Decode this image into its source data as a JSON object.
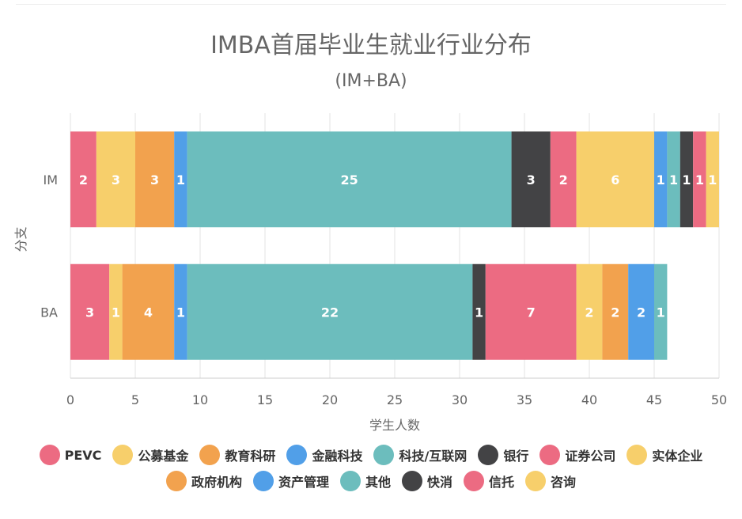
{
  "chart_data": {
    "type": "bar",
    "orientation": "horizontal",
    "stacked": true,
    "title": "IMBA首届毕业生就业行业分布",
    "subtitle": "(IM+BA)",
    "xlabel": "学生人数",
    "ylabel": "分支",
    "categories": [
      "IM",
      "BA"
    ],
    "xlim": [
      0,
      50
    ],
    "xticks": [
      "0",
      "5",
      "10",
      "15",
      "20",
      "25",
      "30",
      "35",
      "40",
      "45",
      "50"
    ],
    "grid": true,
    "legend_position": "bottom",
    "series": [
      {
        "name": "PEVC",
        "color": "#EC6B82",
        "values": [
          2,
          3
        ]
      },
      {
        "name": "公募基金",
        "color": "#F7CF6B",
        "values": [
          3,
          1
        ]
      },
      {
        "name": "教育科研",
        "color": "#F2A24E",
        "values": [
          3,
          4
        ]
      },
      {
        "name": "金融科技",
        "color": "#519FE8",
        "values": [
          1,
          1
        ]
      },
      {
        "name": "科技/互联网",
        "color": "#6CBDBD",
        "values": [
          25,
          22
        ]
      },
      {
        "name": "银行",
        "color": "#434345",
        "values": [
          3,
          1
        ]
      },
      {
        "name": "证券公司",
        "color": "#EC6B82",
        "values": [
          2,
          7
        ]
      },
      {
        "name": "实体企业",
        "color": "#F7CF6B",
        "values": [
          6,
          2
        ]
      },
      {
        "name": "政府机构",
        "color": "#F2A24E",
        "values": [
          0,
          2
        ]
      },
      {
        "name": "资产管理",
        "color": "#519FE8",
        "values": [
          1,
          2
        ]
      },
      {
        "name": "其他",
        "color": "#6CBDBD",
        "values": [
          1,
          1
        ]
      },
      {
        "name": "快消",
        "color": "#434345",
        "values": [
          1,
          0
        ]
      },
      {
        "name": "信托",
        "color": "#EC6B82",
        "values": [
          1,
          0
        ]
      },
      {
        "name": "咨询",
        "color": "#F7CF6B",
        "values": [
          1,
          0
        ]
      }
    ]
  },
  "legend_rows": [
    [
      0,
      1,
      2,
      3,
      4,
      5,
      6,
      7
    ],
    [
      8,
      9,
      10,
      11,
      12,
      13
    ]
  ],
  "label_color": "#ffffff",
  "axis_text_color": "#666666",
  "grid_color": "#e3e3e3"
}
